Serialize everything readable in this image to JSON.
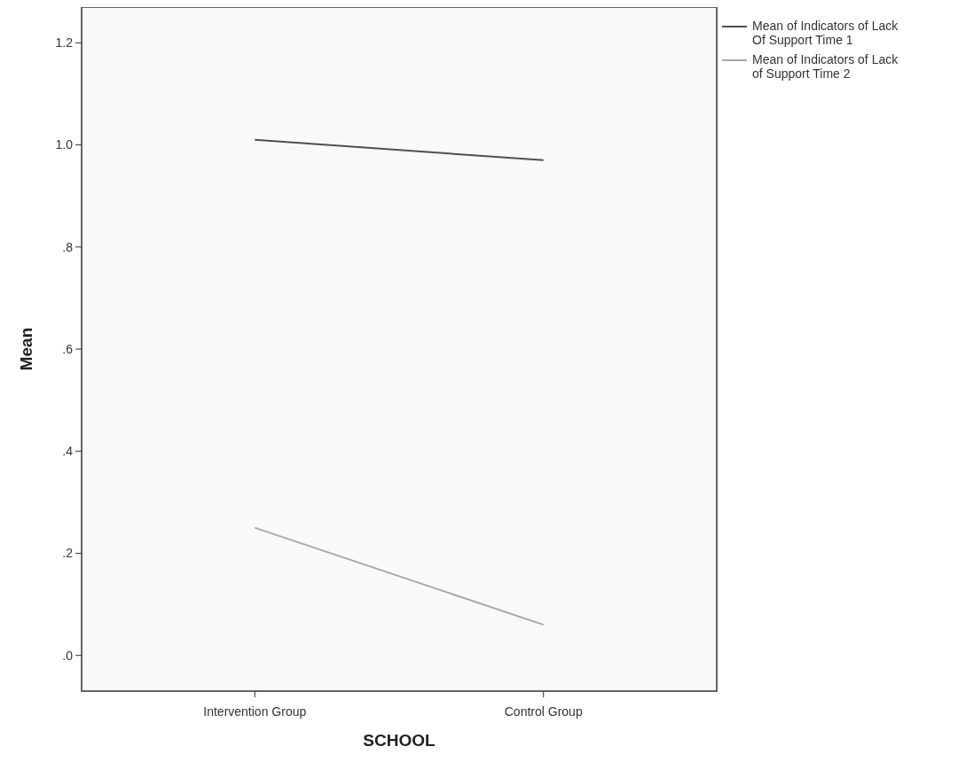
{
  "chart_data": {
    "type": "line",
    "xlabel": "SCHOOL",
    "ylabel": "Mean",
    "categories": [
      "Intervention Group",
      "Control Group"
    ],
    "series": [
      {
        "name": "Mean of Indicators of Lack Of Support Time 1",
        "color": "#505050",
        "values": [
          1.01,
          0.97
        ]
      },
      {
        "name": "Mean of Indicators of Lack of Support Time 2",
        "color": "#a8a8a8",
        "values": [
          0.25,
          0.06
        ]
      }
    ],
    "ylim": [
      -0.07,
      1.27
    ],
    "yticks": [
      {
        "value": 0,
        "label": ".0"
      },
      {
        "value": 0.2,
        "label": ".2"
      },
      {
        "value": 0.4,
        "label": ".4"
      },
      {
        "value": 0.6,
        "label": ".6"
      },
      {
        "value": 0.8,
        "label": ".8"
      },
      {
        "value": 1,
        "label": "1.0"
      },
      {
        "value": 1.2,
        "label": "1.2"
      }
    ],
    "legend": "top right",
    "grid": false,
    "marker": "none",
    "line_style": "solid"
  }
}
